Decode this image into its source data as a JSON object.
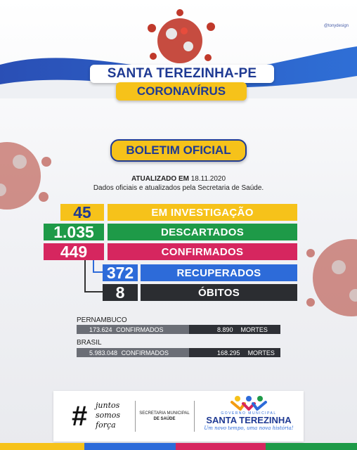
{
  "header": {
    "title": "SANTA TEREZINHA-PE",
    "subtitle": "CORONAVÍRUS",
    "credit": "@tonydesign"
  },
  "bulletin": {
    "title": "BOLETIM OFICIAL",
    "updated_label": "ATUALIZADO EM",
    "updated_date": "18.11.2020",
    "description": "Dados oficiais e atualizados pela Secretaria de Saúde."
  },
  "stats": [
    {
      "value": "45",
      "label": "EM INVESTIGAÇÃO",
      "color": "#f6c21a",
      "text_color": "#1f3a93"
    },
    {
      "value": "1.035",
      "label": "DESCARTADOS",
      "color": "#1e9a48",
      "text_color": "#1f3a93"
    },
    {
      "value": "449",
      "label": "CONFIRMADOS",
      "color": "#d6265f",
      "text_color": "#1f3a93"
    },
    {
      "value": "372",
      "label": "RECUPERADOS",
      "color": "#2d6bd9",
      "text_color": "#1f3a93"
    },
    {
      "value": "8",
      "label": "ÓBITOS",
      "color": "#2b2d31",
      "text_color": "#1f3a93"
    }
  ],
  "regions": [
    {
      "name": "PERNAMBUCO",
      "confirmed_value": "173.624",
      "confirmed_label": "CONFIRMADOS",
      "deaths_value": "8.890",
      "deaths_label": "MORTES"
    },
    {
      "name": "BRASIL",
      "confirmed_value": "5.983.048",
      "confirmed_label": "CONFIRMADOS",
      "deaths_value": "168.295",
      "deaths_label": "MORTES"
    }
  ],
  "footer": {
    "hashtag_line1": "juntos",
    "hashtag_line2": "somos",
    "hashtag_line3": "força",
    "secretaria_line1": "SECRETARIA MUNICIPAL",
    "secretaria_line2": "DE SAÚDE",
    "gov_label": "GOVERNO MUNICIPAL",
    "city": "SANTA TEREZINHA",
    "slogan": "Um novo tempo, uma nova história!"
  },
  "colors": {
    "brand_blue": "#1f3a93",
    "brand_yellow": "#f6c21a",
    "virus_red": "#c0392b"
  }
}
